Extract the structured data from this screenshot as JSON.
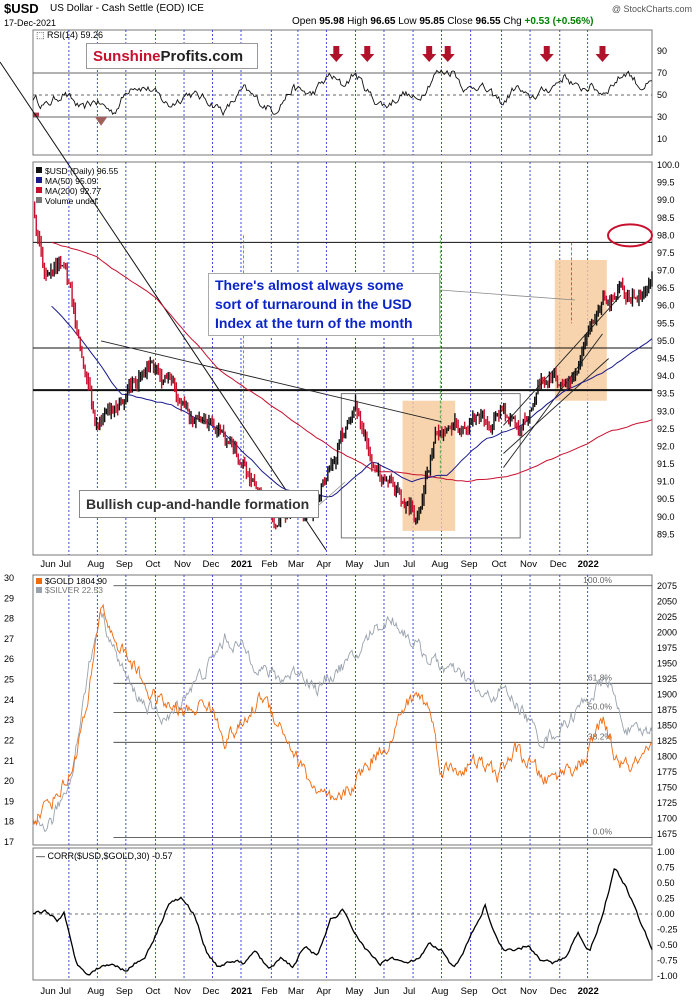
{
  "header": {
    "symbol": "$USD",
    "name": "US Dollar - Cash Settle (EOD) ICE",
    "date": "17-Dec-2021",
    "open_label": "Open",
    "open": "95.98",
    "high_label": "High",
    "high": "96.65",
    "low_label": "Low",
    "low": "95.85",
    "close_label": "Close",
    "close": "96.55",
    "chg_label": "Chg",
    "chg": "+0.53 (+0.56%)",
    "credit": "@ StockCharts.com"
  },
  "brand": {
    "part1": "Sunshine",
    "part2": "Profits.com"
  },
  "annotations": {
    "turnaround": "There's almost always some sort of turnaround in the USD Index at the turn of the month",
    "cup": "Bullish cup-and-handle formation"
  },
  "colors": {
    "price": "#c8102e",
    "ma50": "#1a1a8c",
    "ma200": "#c8102e",
    "gold": "#f06a0e",
    "silver": "#9aa3ad",
    "highlight": "#f5c998",
    "arrow": "#b0122c"
  },
  "x_labels": [
    "Jun",
    "Jul",
    "Aug",
    "Sep",
    "Oct",
    "Nov",
    "Dec",
    "2021",
    "Feb",
    "Mar",
    "Apr",
    "May",
    "Jun",
    "Jul",
    "Aug",
    "Sep",
    "Oct",
    "Nov",
    "Dec",
    "2022"
  ],
  "chart_data": [
    {
      "type": "line",
      "title": "RSI(14) 59.26",
      "ylim": [
        0,
        100
      ],
      "yticks": [
        10,
        30,
        50,
        70,
        90
      ],
      "reference_lines": [
        30,
        50,
        70
      ],
      "last_value": 59.26,
      "keypoints": [
        [
          0,
          48
        ],
        [
          0.02,
          40
        ],
        [
          0.05,
          52
        ],
        [
          0.08,
          36
        ],
        [
          0.1,
          45
        ],
        [
          0.13,
          34
        ],
        [
          0.16,
          60
        ],
        [
          0.19,
          55
        ],
        [
          0.22,
          40
        ],
        [
          0.25,
          52
        ],
        [
          0.28,
          46
        ],
        [
          0.31,
          35
        ],
        [
          0.34,
          55
        ],
        [
          0.37,
          42
        ],
        [
          0.39,
          36
        ],
        [
          0.42,
          56
        ],
        [
          0.45,
          50
        ],
        [
          0.48,
          68
        ],
        [
          0.5,
          58
        ],
        [
          0.52,
          70
        ],
        [
          0.55,
          46
        ],
        [
          0.57,
          40
        ],
        [
          0.6,
          52
        ],
        [
          0.62,
          44
        ],
        [
          0.65,
          70
        ],
        [
          0.68,
          72
        ],
        [
          0.7,
          54
        ],
        [
          0.72,
          60
        ],
        [
          0.74,
          50
        ],
        [
          0.76,
          42
        ],
        [
          0.78,
          58
        ],
        [
          0.8,
          46
        ],
        [
          0.82,
          52
        ],
        [
          0.84,
          58
        ],
        [
          0.86,
          68
        ],
        [
          0.88,
          55
        ],
        [
          0.9,
          58
        ],
        [
          0.92,
          52
        ],
        [
          0.94,
          62
        ],
        [
          0.96,
          72
        ],
        [
          0.98,
          58
        ],
        [
          1.0,
          59.26
        ]
      ],
      "signals_x": [
        0.49,
        0.54,
        0.64,
        0.67,
        0.83,
        0.92
      ]
    },
    {
      "type": "line",
      "title": "$USD (Daily) 96.55",
      "legend": [
        "$USD (Daily) 96.55",
        "MA(50) 95.09",
        "MA(200) 92.77",
        "Volume undef"
      ],
      "ylim": [
        89.0,
        100.0
      ],
      "yticks": [
        89.5,
        90.0,
        90.5,
        91.0,
        91.5,
        92.0,
        92.5,
        93.0,
        93.5,
        94.0,
        94.5,
        95.0,
        95.5,
        96.0,
        96.5,
        97.0,
        97.5,
        98.0,
        98.5,
        99.0,
        99.5,
        100.0
      ],
      "horizontal_lines": [
        97.8,
        94.8,
        93.6
      ],
      "target_ellipse": 98.0,
      "price_keypoints": [
        [
          0,
          98.8
        ],
        [
          0.02,
          97.0
        ],
        [
          0.05,
          97.3
        ],
        [
          0.08,
          94.5
        ],
        [
          0.1,
          92.8
        ],
        [
          0.13,
          93.0
        ],
        [
          0.16,
          93.8
        ],
        [
          0.19,
          94.3
        ],
        [
          0.22,
          93.8
        ],
        [
          0.25,
          93.0
        ],
        [
          0.28,
          92.6
        ],
        [
          0.31,
          92.3
        ],
        [
          0.34,
          91.5
        ],
        [
          0.37,
          90.5
        ],
        [
          0.39,
          89.8
        ],
        [
          0.42,
          90.3
        ],
        [
          0.45,
          90.2
        ],
        [
          0.48,
          91.5
        ],
        [
          0.5,
          92.2
        ],
        [
          0.52,
          93.2
        ],
        [
          0.55,
          91.5
        ],
        [
          0.57,
          91.0
        ],
        [
          0.6,
          90.5
        ],
        [
          0.62,
          90.0
        ],
        [
          0.65,
          92.2
        ],
        [
          0.68,
          92.7
        ],
        [
          0.7,
          92.5
        ],
        [
          0.72,
          92.9
        ],
        [
          0.74,
          92.6
        ],
        [
          0.76,
          93.0
        ],
        [
          0.78,
          92.6
        ],
        [
          0.8,
          92.9
        ],
        [
          0.82,
          93.8
        ],
        [
          0.84,
          94.0
        ],
        [
          0.86,
          93.9
        ],
        [
          0.88,
          94.2
        ],
        [
          0.9,
          95.2
        ],
        [
          0.92,
          96.0
        ],
        [
          0.94,
          96.3
        ],
        [
          0.96,
          96.4
        ],
        [
          0.98,
          96.2
        ],
        [
          1.0,
          96.55
        ]
      ],
      "ma50_keypoints": [
        [
          0.03,
          96.0
        ],
        [
          0.08,
          95.0
        ],
        [
          0.14,
          93.5
        ],
        [
          0.22,
          93.2
        ],
        [
          0.3,
          92.5
        ],
        [
          0.4,
          90.8
        ],
        [
          0.48,
          90.5
        ],
        [
          0.55,
          91.6
        ],
        [
          0.61,
          91.0
        ],
        [
          0.67,
          91.2
        ],
        [
          0.73,
          92.2
        ],
        [
          0.79,
          92.6
        ],
        [
          0.86,
          93.6
        ],
        [
          0.93,
          94.2
        ],
        [
          1.0,
          95.09
        ]
      ],
      "ma200_keypoints": [
        [
          0.03,
          97.8
        ],
        [
          0.1,
          97.4
        ],
        [
          0.2,
          96.2
        ],
        [
          0.3,
          94.2
        ],
        [
          0.4,
          93.0
        ],
        [
          0.48,
          92.0
        ],
        [
          0.55,
          91.3
        ],
        [
          0.62,
          91.2
        ],
        [
          0.7,
          91.0
        ],
        [
          0.78,
          91.2
        ],
        [
          0.86,
          91.8
        ],
        [
          0.93,
          92.4
        ],
        [
          1.0,
          92.77
        ]
      ]
    },
    {
      "type": "line",
      "title": "$GOLD 1804.90",
      "legend": [
        "$GOLD 1804.90",
        "$SILVER 22.53"
      ],
      "left_ylim": [
        17,
        30
      ],
      "left_yticks": [
        17,
        18,
        19,
        20,
        21,
        22,
        23,
        24,
        25,
        26,
        27,
        28,
        29,
        30
      ],
      "right_ylim": [
        1662.5,
        2087.5
      ],
      "right_yticks": [
        1675,
        1700,
        1725,
        1750,
        1775,
        1800,
        1825,
        1850,
        1875,
        1900,
        1925,
        1950,
        1975,
        2000,
        2025,
        2050,
        2075
      ],
      "fib_levels": [
        {
          "label": "100.0%",
          "value": 2075
        },
        {
          "label": "61.8%",
          "value": 1918
        },
        {
          "label": "50.0%",
          "value": 1871
        },
        {
          "label": "38.2%",
          "value": 1823
        },
        {
          "label": "0.0%",
          "value": 1670
        }
      ],
      "gold_keypoints": [
        [
          0,
          1700
        ],
        [
          0.03,
          1730
        ],
        [
          0.06,
          1770
        ],
        [
          0.09,
          1890
        ],
        [
          0.11,
          2050
        ],
        [
          0.13,
          1990
        ],
        [
          0.16,
          1950
        ],
        [
          0.19,
          1900
        ],
        [
          0.22,
          1880
        ],
        [
          0.25,
          1870
        ],
        [
          0.28,
          1890
        ],
        [
          0.31,
          1830
        ],
        [
          0.34,
          1850
        ],
        [
          0.37,
          1900
        ],
        [
          0.4,
          1850
        ],
        [
          0.43,
          1790
        ],
        [
          0.46,
          1740
        ],
        [
          0.49,
          1720
        ],
        [
          0.52,
          1760
        ],
        [
          0.55,
          1800
        ],
        [
          0.58,
          1830
        ],
        [
          0.6,
          1880
        ],
        [
          0.62,
          1900
        ],
        [
          0.64,
          1880
        ],
        [
          0.66,
          1780
        ],
        [
          0.69,
          1780
        ],
        [
          0.72,
          1790
        ],
        [
          0.75,
          1770
        ],
        [
          0.78,
          1810
        ],
        [
          0.8,
          1790
        ],
        [
          0.83,
          1760
        ],
        [
          0.86,
          1780
        ],
        [
          0.89,
          1790
        ],
        [
          0.92,
          1860
        ],
        [
          0.94,
          1800
        ],
        [
          0.96,
          1780
        ],
        [
          0.98,
          1790
        ],
        [
          1.0,
          1804.9
        ]
      ],
      "silver_keypoints": [
        [
          0,
          17.5
        ],
        [
          0.03,
          18.0
        ],
        [
          0.06,
          20.0
        ],
        [
          0.09,
          25.5
        ],
        [
          0.11,
          28.5
        ],
        [
          0.13,
          26.5
        ],
        [
          0.16,
          24.5
        ],
        [
          0.19,
          23.5
        ],
        [
          0.22,
          23.0
        ],
        [
          0.25,
          24.5
        ],
        [
          0.28,
          25.5
        ],
        [
          0.31,
          27.0
        ],
        [
          0.34,
          26.5
        ],
        [
          0.37,
          25.5
        ],
        [
          0.4,
          25.0
        ],
        [
          0.43,
          25.5
        ],
        [
          0.46,
          24.5
        ],
        [
          0.49,
          25.5
        ],
        [
          0.52,
          26.0
        ],
        [
          0.55,
          27.5
        ],
        [
          0.58,
          28.0
        ],
        [
          0.61,
          27.0
        ],
        [
          0.64,
          26.0
        ],
        [
          0.67,
          25.5
        ],
        [
          0.7,
          25.0
        ],
        [
          0.73,
          24.0
        ],
        [
          0.76,
          24.5
        ],
        [
          0.79,
          23.5
        ],
        [
          0.82,
          22.0
        ],
        [
          0.85,
          22.5
        ],
        [
          0.88,
          23.5
        ],
        [
          0.91,
          24.5
        ],
        [
          0.93,
          25.0
        ],
        [
          0.95,
          23.0
        ],
        [
          0.97,
          22.3
        ],
        [
          1.0,
          22.53
        ]
      ]
    },
    {
      "type": "line",
      "title": "CORR($USD,$GOLD,30) -0.57",
      "ylim": [
        -1.0,
        1.0
      ],
      "yticks": [
        -1.0,
        -0.75,
        -0.5,
        -0.25,
        0.0,
        0.25,
        0.5,
        0.75,
        1.0
      ],
      "last_value": -0.57,
      "keypoints": [
        [
          0,
          0.0
        ],
        [
          0.02,
          0.05
        ],
        [
          0.04,
          -0.1
        ],
        [
          0.05,
          0.0
        ],
        [
          0.07,
          -0.8
        ],
        [
          0.09,
          -0.95
        ],
        [
          0.12,
          -0.8
        ],
        [
          0.15,
          -0.9
        ],
        [
          0.18,
          -0.7
        ],
        [
          0.2,
          -0.3
        ],
        [
          0.22,
          0.2
        ],
        [
          0.24,
          0.25
        ],
        [
          0.26,
          0.0
        ],
        [
          0.28,
          -0.6
        ],
        [
          0.3,
          -0.85
        ],
        [
          0.32,
          -0.75
        ],
        [
          0.34,
          -0.8
        ],
        [
          0.36,
          -0.6
        ],
        [
          0.38,
          -0.9
        ],
        [
          0.4,
          -0.7
        ],
        [
          0.42,
          -0.85
        ],
        [
          0.44,
          -0.5
        ],
        [
          0.46,
          -0.7
        ],
        [
          0.48,
          -0.1
        ],
        [
          0.5,
          0.05
        ],
        [
          0.52,
          -0.3
        ],
        [
          0.54,
          -0.6
        ],
        [
          0.56,
          -0.8
        ],
        [
          0.58,
          -0.7
        ],
        [
          0.6,
          -0.8
        ],
        [
          0.62,
          -0.75
        ],
        [
          0.64,
          -0.5
        ],
        [
          0.66,
          -0.6
        ],
        [
          0.68,
          -0.9
        ],
        [
          0.7,
          -0.5
        ],
        [
          0.72,
          -0.1
        ],
        [
          0.73,
          0.15
        ],
        [
          0.74,
          -0.2
        ],
        [
          0.76,
          -0.6
        ],
        [
          0.78,
          -0.6
        ],
        [
          0.8,
          -0.5
        ],
        [
          0.82,
          -0.75
        ],
        [
          0.84,
          -0.8
        ],
        [
          0.86,
          -0.7
        ],
        [
          0.88,
          -0.3
        ],
        [
          0.9,
          -0.6
        ],
        [
          0.92,
          0.0
        ],
        [
          0.94,
          0.75
        ],
        [
          0.96,
          0.4
        ],
        [
          0.98,
          -0.1
        ],
        [
          1.0,
          -0.57
        ]
      ]
    }
  ]
}
